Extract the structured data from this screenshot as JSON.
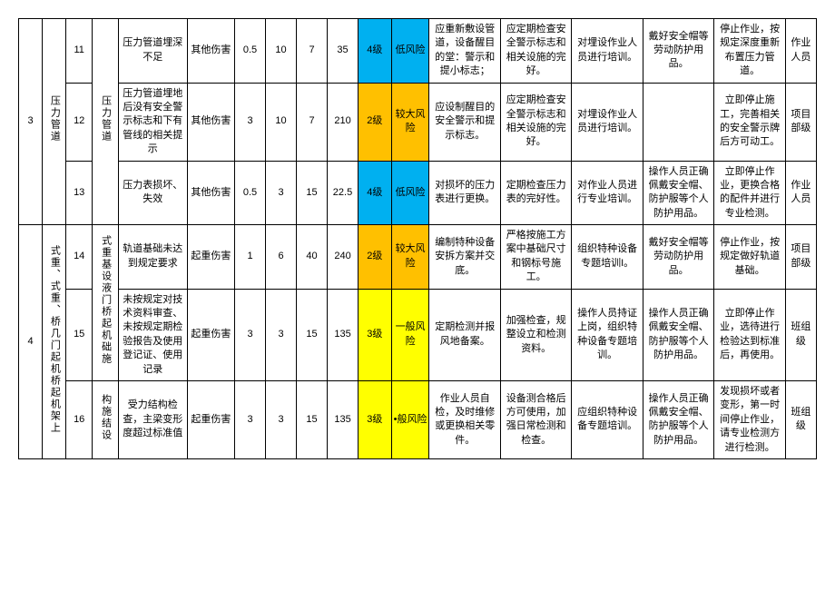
{
  "colors": {
    "blue": "#00b0f0",
    "orange": "#ffc000",
    "yellow": "#ffff00",
    "border": "#000000",
    "bg": "#ffffff"
  },
  "groups": [
    {
      "g_idx": "3",
      "g_name": "压力管道",
      "sub_idx_span": 3,
      "sub_name": "压力管道",
      "rows": [
        {
          "idx": "11",
          "desc": "压力管道埋深不足",
          "type": "其他伤害",
          "v1": "0.5",
          "v2": "10",
          "v3": "7",
          "v4": "35",
          "lvl": "4级",
          "lvl_color": "blue",
          "risk": "低风险",
          "risk_color": "blue",
          "c1": "应重新敷设管道，设备醒目的堂：警示和提小标志；",
          "c2": "应定期检查安全警示标志和相关设施的完好。",
          "c3": "对埋设作业人员进行培训。",
          "c4": "戴好安全帽等劳动防护用品。",
          "c5": "停止作业，按规定深度重新布置压力管道。",
          "c6": "作业人员"
        },
        {
          "idx": "12",
          "desc": "压力管道埋地后没有安全警示标志和下有管线的相关提示",
          "type": "其他伤害",
          "v1": "3",
          "v2": "10",
          "v3": "7",
          "v4": "210",
          "lvl": "2级",
          "lvl_color": "orange",
          "risk": "较大风险",
          "risk_color": "orange",
          "c1": "应设制醒目的安全警示和提示标志。",
          "c2": "应定期检查安全警示标志和相关设施的完好。",
          "c3": "对埋设作业人员进行培训。",
          "c4": "",
          "c5": "立即停止施工，完善相关的安全警示牌后方可动工。",
          "c6": "项目部级"
        },
        {
          "idx": "13",
          "desc": "压力表损坏、失效",
          "type": "其他伤害",
          "v1": "0.5",
          "v2": "3",
          "v3": "15",
          "v4": "22.5",
          "lvl": "4级",
          "lvl_color": "blue",
          "risk": "低风险",
          "risk_color": "blue",
          "c1": "对损坏的压力表进行更换。",
          "c2": "定期检查压力表的完好性。",
          "c3": "对作业人员进行专业培训。",
          "c4": "操作人员正确佩戴安全帽、防护服等个人防护用品。",
          "c5": "立即停止作业，更换合格的配件并进行专业检测。",
          "c6": "作业人员"
        }
      ]
    },
    {
      "g_idx": "4",
      "g_name": "式重、式重、桥几门起机桥起机架上",
      "sub_name": "式重基设液门桥起机础施",
      "rows": [
        {
          "idx": "14",
          "desc": "轨道基础未达到规定要求",
          "type": "起重伤害",
          "v1": "1",
          "v2": "6",
          "v3": "40",
          "v4": "240",
          "lvl": "2级",
          "lvl_color": "orange",
          "risk": "较大风险",
          "risk_color": "orange",
          "c1": "编制特种设备安拆方案并交底。",
          "c2": "严格按施工方案中基础尺寸和钢标号施工。",
          "c3": "组织特种设备专题培训I。",
          "c4": "戴好安全帽等劳动防护用品。",
          "c5": "停止作业，按规定做好轨道基础。",
          "c6": "项目部级"
        },
        {
          "idx": "15",
          "desc": "未按规定对技术资料审查、未按规定期检验报告及使用登记证、使用记录",
          "type": "起重伤害",
          "v1": "3",
          "v2": "3",
          "v3": "15",
          "v4": "135",
          "lvl": "3级",
          "lvl_color": "yellow",
          "risk": "一般风险",
          "risk_color": "yellow",
          "c1": "定期检测并报风地备案。",
          "c2": "加强检查，规整设立和检测资料。",
          "c3": "操作人员持证上岗，组织特种设备专题培训。",
          "c4": "操作人员正确佩戴安全帽、防护服等个人防护用品。",
          "c5": "立即停止作业，选待进行检验达到标准后，再使用。",
          "c6": "班组级"
        },
        {
          "idx": "16",
          "sub2": "构施结设",
          "desc": "受力结构检查，主梁变形度超过标准值",
          "type": "起重伤害",
          "v1": "3",
          "v2": "3",
          "v3": "15",
          "v4": "135",
          "lvl": "3级",
          "lvl_color": "yellow",
          "risk": "•般风险",
          "risk_color": "yellow",
          "c1": "作业人员自检，及时维修或更换相关零件。",
          "c2": "设备测合格后方可使用，加强日常检测和检查。",
          "c3": "应组织特种设备专题培训。",
          "c4": "操作人员正确佩戴安全帽、防护服等个人防护用品。",
          "c5": "发现损坏或者变形，第一时间停止作业，请专业检测方进行检测。",
          "c6": "班组级"
        }
      ]
    }
  ]
}
